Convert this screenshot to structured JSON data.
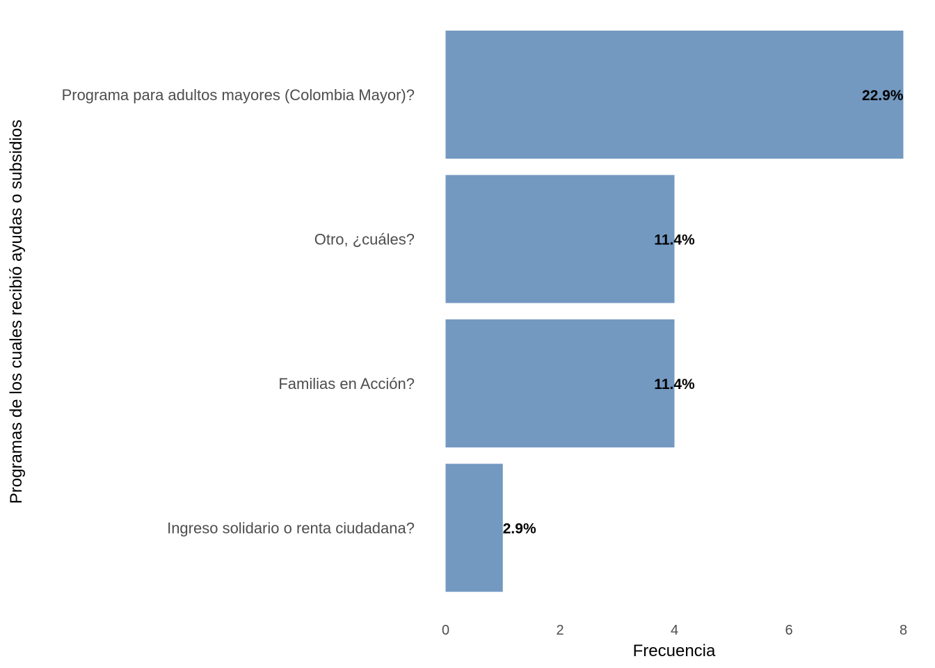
{
  "colors": {
    "bar": "#7399c1",
    "background": "#ffffff"
  },
  "chart_data": {
    "type": "bar",
    "orientation": "horizontal",
    "categories": [
      "Programa para adultos mayores (Colombia Mayor)?",
      "Otro, ¿cuáles?",
      "Familias en Acción?",
      "Ingreso solidario o renta ciudadana?"
    ],
    "values": [
      8,
      4,
      4,
      1
    ],
    "labels": [
      "22.9%",
      "11.4%",
      "11.4%",
      "2.9%"
    ],
    "xlabel": "Frecuencia",
    "ylabel": "Programas de los cuales recibió ayudas o subsidios",
    "xlim": [
      0,
      8
    ],
    "xticks": [
      0,
      2,
      4,
      6,
      8
    ],
    "grid": false,
    "legend": "none"
  }
}
